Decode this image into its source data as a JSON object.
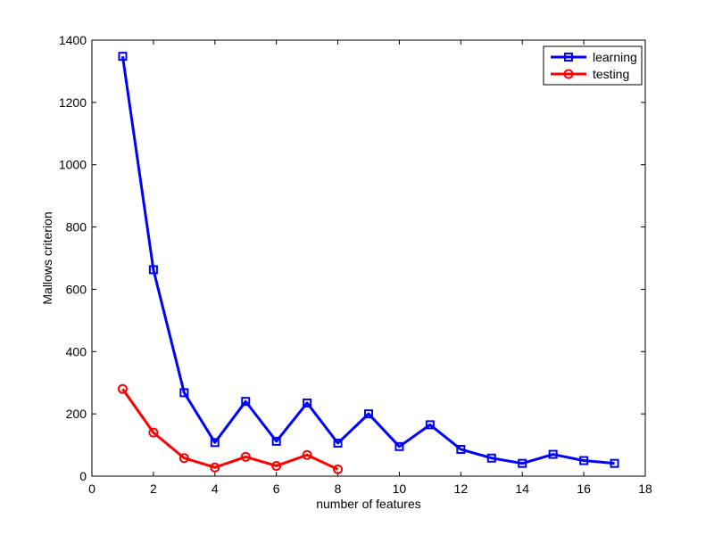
{
  "chart_data": {
    "type": "line",
    "title": "",
    "xlabel": "number of features",
    "ylabel": "Mallows criterion",
    "xlim": [
      0,
      18
    ],
    "ylim": [
      0,
      1400
    ],
    "xticks": [
      0,
      2,
      4,
      6,
      8,
      10,
      12,
      14,
      16,
      18
    ],
    "yticks": [
      0,
      200,
      400,
      600,
      800,
      1000,
      1200,
      1400
    ],
    "grid": false,
    "legend_position": "top-right",
    "series": [
      {
        "name": "learning",
        "color": "#0000ff",
        "marker": "square",
        "x": [
          1,
          2,
          3,
          4,
          5,
          6,
          7,
          8,
          9,
          10,
          11,
          12,
          13,
          14,
          15,
          16,
          17
        ],
        "y": [
          1348,
          663,
          268,
          108,
          240,
          112,
          235,
          106,
          200,
          95,
          165,
          86,
          58,
          41,
          70,
          50,
          41
        ]
      },
      {
        "name": "testing",
        "color": "#ff0000",
        "marker": "circle",
        "x": [
          1,
          2,
          3,
          4,
          5,
          6,
          7,
          8
        ],
        "y": [
          280,
          140,
          58,
          28,
          62,
          33,
          68,
          22
        ]
      }
    ]
  }
}
